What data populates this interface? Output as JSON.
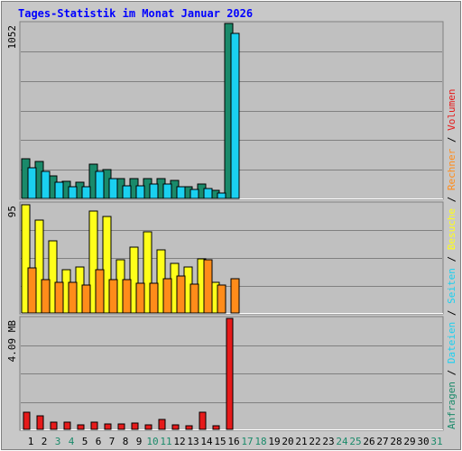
{
  "title": "Tages-Statistik im Monat Januar 2026",
  "colors": {
    "background": "#c8c8c8",
    "plot_bg": "#c0c0c0",
    "title": "#0000ff",
    "grid": "#808080",
    "anfragen": "#1a8a6a",
    "dateien": "#1ad0f0",
    "besuche": "#ffff1a",
    "rechner": "#ff8c1a",
    "volumen": "#e61a1a",
    "weekend_label": "#1a8a6a",
    "weekday_label": "#000000"
  },
  "right_legend": {
    "top": [
      {
        "text": "Anfragen",
        "color": "#1a8a6a"
      },
      {
        "text": "/",
        "color": "#000000"
      },
      {
        "text": "Dateien",
        "color": "#1ad0f0"
      },
      {
        "text": "/",
        "color": "#000000"
      },
      {
        "text": "Seiten",
        "color": "#1ad0f0"
      },
      {
        "text": "/",
        "color": "#000000"
      },
      {
        "text": "Besuche",
        "color": "#ffff1a"
      },
      {
        "text": "/",
        "color": "#000000"
      },
      {
        "text": "Rechner",
        "color": "#ff8c1a"
      },
      {
        "text": "/",
        "color": "#000000"
      },
      {
        "text": "Volumen",
        "color": "#e61a1a"
      }
    ]
  },
  "chart_data": [
    {
      "type": "bar",
      "panel": "requests",
      "ymax_label": "1052",
      "ylim": [
        0,
        1052
      ],
      "categories": [
        "1",
        "2",
        "3",
        "4",
        "5",
        "6",
        "7",
        "8",
        "9",
        "10",
        "11",
        "12",
        "13",
        "14",
        "15",
        "16",
        "17",
        "18",
        "19",
        "20",
        "21",
        "22",
        "23",
        "24",
        "25",
        "26",
        "27",
        "28",
        "29",
        "30",
        "31"
      ],
      "weekend": [
        3,
        4,
        10,
        11,
        17,
        18,
        24,
        25,
        31
      ],
      "series": [
        {
          "name": "Anfragen",
          "color": "#1a8a6a",
          "values": [
            237,
            222,
            133,
            105,
            95,
            205,
            172,
            122,
            122,
            122,
            118,
            110,
            72,
            85,
            48,
            1052,
            0,
            0,
            0,
            0,
            0,
            0,
            0,
            0,
            0,
            0,
            0,
            0,
            0,
            0,
            0
          ]
        },
        {
          "name": "Dateien",
          "color": "#1ad0f0",
          "values": [
            182,
            160,
            100,
            72,
            70,
            160,
            120,
            78,
            78,
            85,
            85,
            70,
            55,
            60,
            35,
            990,
            0,
            0,
            0,
            0,
            0,
            0,
            0,
            0,
            0,
            0,
            0,
            0,
            0,
            0,
            0
          ]
        }
      ]
    },
    {
      "type": "bar",
      "panel": "visits",
      "ymax_label": "95",
      "ylim": [
        0,
        95
      ],
      "series": [
        {
          "name": "Besuche",
          "color": "#ffff1a",
          "values": [
            94,
            81,
            63,
            38,
            40,
            89,
            84,
            46,
            57,
            71,
            55,
            43,
            40,
            47,
            27,
            0,
            0,
            0,
            0,
            0,
            0,
            0,
            0,
            0,
            0,
            0,
            0,
            0,
            0,
            0,
            0
          ]
        },
        {
          "name": "Rechner",
          "color": "#ff8c1a",
          "values": [
            39,
            29,
            27,
            27,
            24,
            38,
            29,
            29,
            26,
            26,
            30,
            32,
            25,
            46,
            24,
            30,
            0,
            0,
            0,
            0,
            0,
            0,
            0,
            0,
            0,
            0,
            0,
            0,
            0,
            0,
            0
          ]
        }
      ]
    },
    {
      "type": "bar",
      "panel": "volume",
      "ymax_label": "4.09 MB",
      "ylim": [
        0,
        4.09
      ],
      "series": [
        {
          "name": "Volumen",
          "color": "#e61a1a",
          "values": [
            0.62,
            0.5,
            0.26,
            0.26,
            0.17,
            0.26,
            0.2,
            0.2,
            0.22,
            0.17,
            0.37,
            0.17,
            0.14,
            0.62,
            0.14,
            4.09,
            0,
            0,
            0,
            0,
            0,
            0,
            0,
            0,
            0,
            0,
            0,
            0,
            0,
            0,
            0
          ]
        }
      ]
    }
  ]
}
